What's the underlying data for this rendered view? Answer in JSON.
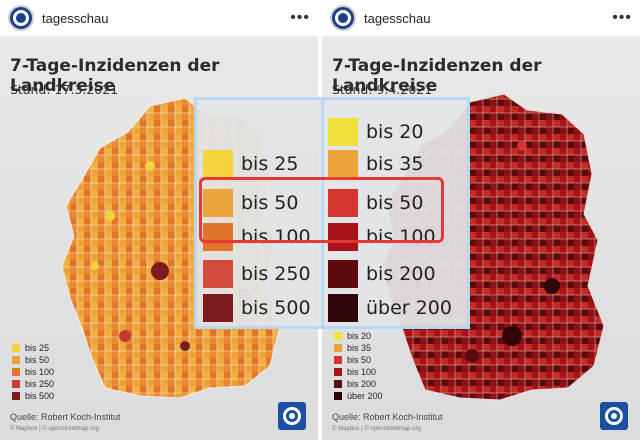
{
  "posts": [
    {
      "account": "tagesschau",
      "title": "7-Tage-Inzidenzen der Landkreise",
      "date": "Stand: 17.3.2021",
      "legend": [
        {
          "label": "bis 25",
          "color": "#f5d33c"
        },
        {
          "label": "bis 50",
          "color": "#eda33a"
        },
        {
          "label": "bis 100",
          "color": "#e2752a"
        },
        {
          "label": "bis 250",
          "color": "#c83a2e"
        },
        {
          "label": "bis 500",
          "color": "#7a1c1f"
        }
      ],
      "source": "Quelle: Robert Koch-Institut",
      "credit": "© Mapbox | © openstreetmap.org"
    },
    {
      "account": "tagesschau",
      "title": "7-Tage-Inzidenzen der Landkreise",
      "date": "Stand: 9.4.2021",
      "legend": [
        {
          "label": "bis 20",
          "color": "#f3df3a"
        },
        {
          "label": "bis 35",
          "color": "#eda33a"
        },
        {
          "label": "bis 50",
          "color": "#d5352f"
        },
        {
          "label": "bis 100",
          "color": "#a8131a"
        },
        {
          "label": "bis 200",
          "color": "#5e0b10"
        },
        {
          "label": "über 200",
          "color": "#2f0508"
        }
      ],
      "source": "Quelle: Robert Koch-Institut",
      "credit": "© Mapbox | © openstreetmap.org"
    }
  ],
  "zoom": {
    "left_items": [
      {
        "label": "bis 25",
        "color": "#f5d33c"
      },
      {
        "label": "bis 50",
        "color": "#eda33a"
      },
      {
        "label": "bis 100",
        "color": "#e2752a"
      },
      {
        "label": "bis 250",
        "color": "#d44a3c"
      },
      {
        "label": "bis 500",
        "color": "#7a1c1f"
      }
    ],
    "right_items": [
      {
        "label": "bis 20",
        "color": "#f3df3a"
      },
      {
        "label": "bis 35",
        "color": "#eda33a"
      },
      {
        "label": "bis 50",
        "color": "#d5352f"
      },
      {
        "label": "bis 100",
        "color": "#a8131a"
      },
      {
        "label": "bis 200",
        "color": "#5e0b10"
      },
      {
        "label": "über 200",
        "color": "#2f0508"
      }
    ],
    "highlight_color": "#e53935"
  },
  "icons": {
    "more": "more-options-icon",
    "avatar": "tagesschau-logo",
    "brand": "tagesschau-logo"
  }
}
